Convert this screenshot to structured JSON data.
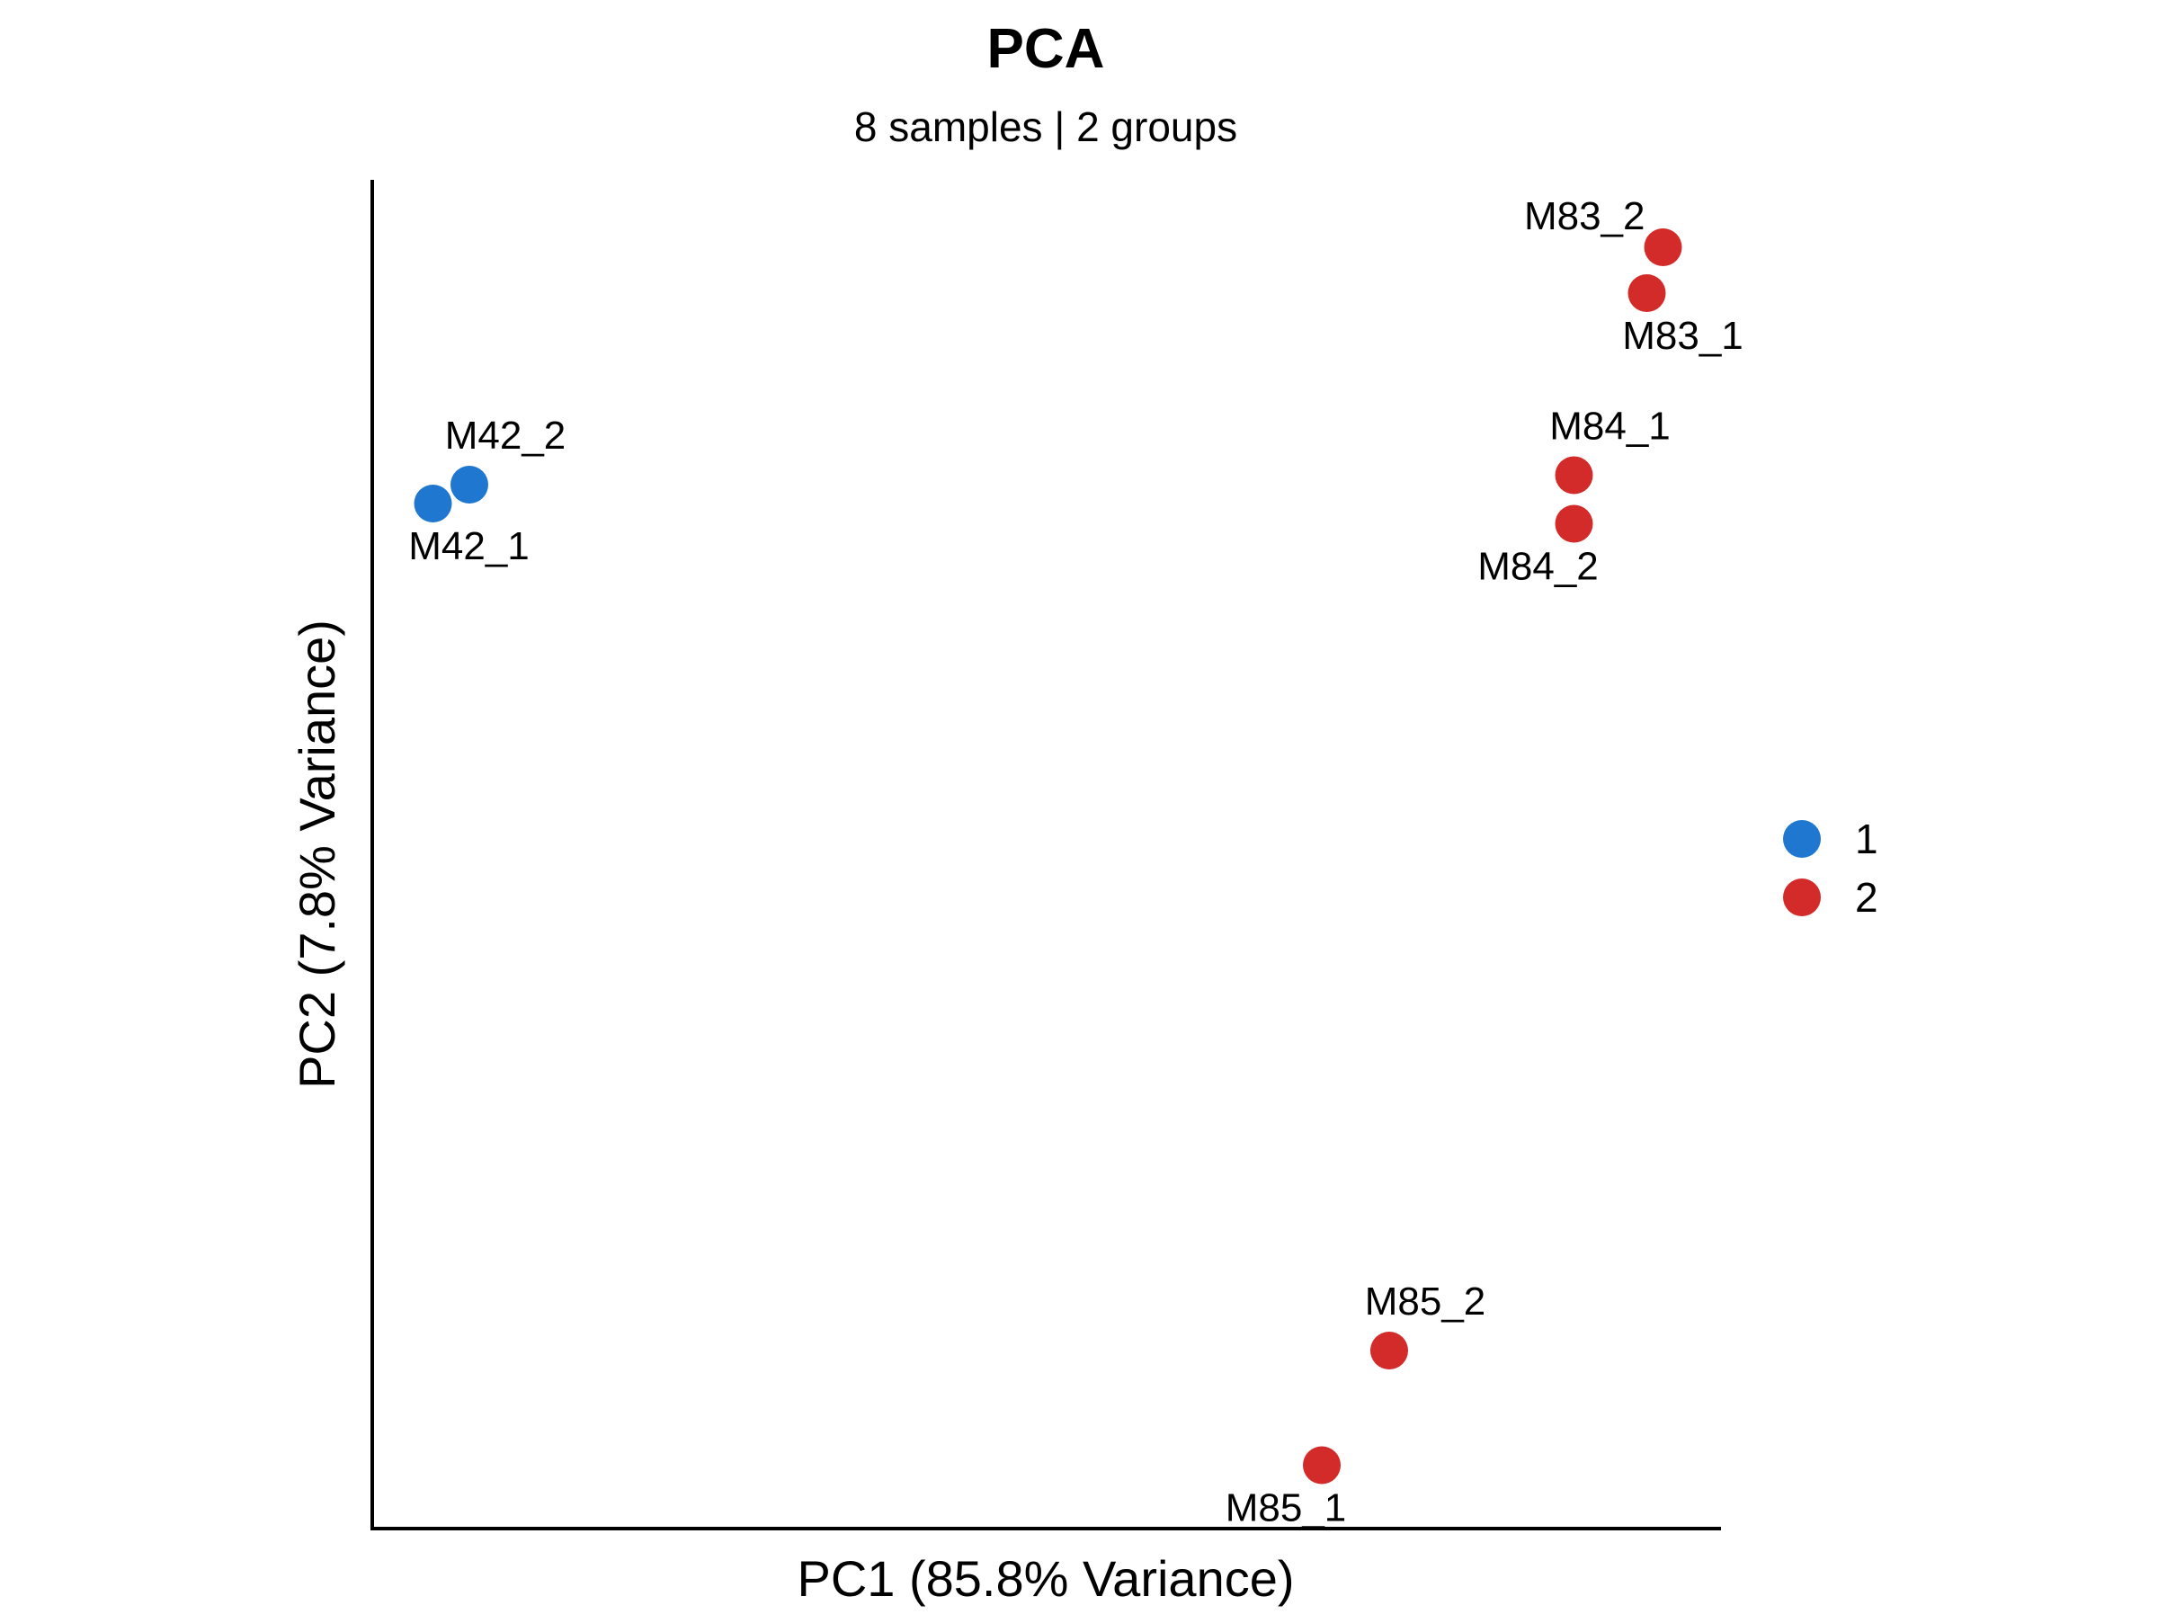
{
  "colors": {
    "group_1": "#1f77d0",
    "group_2": "#d32a2a",
    "axis": "#000000"
  },
  "chart_data": {
    "type": "scatter",
    "title": "PCA",
    "subtitle": "8 samples | 2 groups",
    "xlabel": "PC1 (85.8% Variance)",
    "ylabel": "PC2 (7.8% Variance)",
    "xlim": [
      0,
      100
    ],
    "ylim": [
      0,
      100
    ],
    "grid": false,
    "legend": {
      "position": "right",
      "entries": [
        {
          "label": "1",
          "group": "1"
        },
        {
          "label": "2",
          "group": "2"
        }
      ]
    },
    "points": [
      {
        "label": "M42_1",
        "group": "1",
        "x": 4.5,
        "y": 76.0,
        "label_pos": "below"
      },
      {
        "label": "M42_2",
        "group": "1",
        "x": 7.2,
        "y": 77.4,
        "label_pos": "above"
      },
      {
        "label": "M83_2",
        "group": "2",
        "x": 95.7,
        "y": 95.0,
        "label_pos": "left"
      },
      {
        "label": "M83_1",
        "group": "2",
        "x": 94.5,
        "y": 91.6,
        "label_pos": "below"
      },
      {
        "label": "M84_1",
        "group": "2",
        "x": 89.1,
        "y": 78.1,
        "label_pos": "above"
      },
      {
        "label": "M84_2",
        "group": "2",
        "x": 89.1,
        "y": 74.5,
        "label_pos": "below-left"
      },
      {
        "label": "M85_2",
        "group": "2",
        "x": 75.4,
        "y": 13.2,
        "label_pos": "above"
      },
      {
        "label": "M85_1",
        "group": "2",
        "x": 70.4,
        "y": 4.7,
        "label_pos": "below-left"
      }
    ]
  }
}
